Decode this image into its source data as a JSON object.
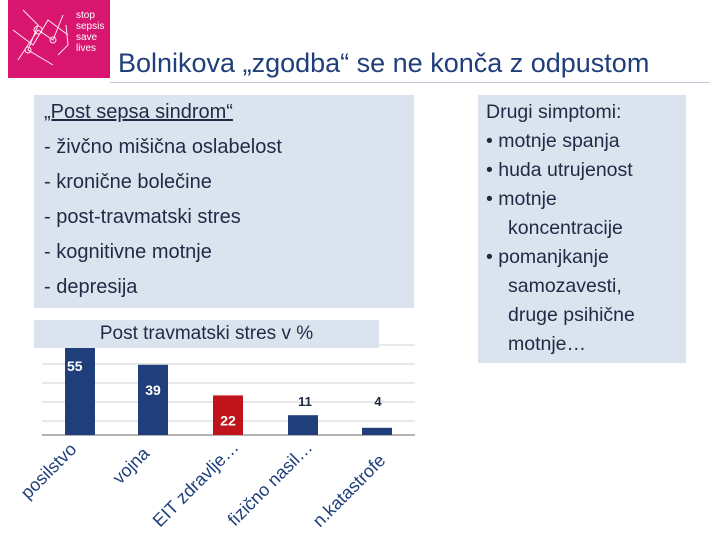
{
  "logo": {
    "lines": [
      "stop",
      "sepsis",
      "save",
      "lives"
    ]
  },
  "title": "Bolnikova „zgodba“ se ne konča z odpustom",
  "left_box": {
    "heading": "„Post sepsa sindrom“",
    "items": [
      "- živčno mišična oslabelost",
      "- kronične bolečine",
      "- post-travmatski stres",
      "- kognitivne motnje",
      "- depresija"
    ]
  },
  "right_box": {
    "lines": [
      "Drugi simptomi:",
      "• motnje spanja",
      "• huda utrujenost",
      "• motnje",
      "koncentracije",
      "• pomanjkanje",
      "samozavesti,",
      "druge psihične",
      "motnje…"
    ]
  },
  "colors": {
    "accent": "#1f3e7a",
    "bar": "#1f3e7a",
    "highlight": "#c0141c",
    "box": "#dbe3ef",
    "logo": "#d9166f"
  },
  "chart_data": {
    "type": "bar",
    "title": "Post travmatski stres v %",
    "categories": [
      "posilstvo",
      "vojna",
      "EIT zdravlje…",
      "fizično nasil…",
      "n.katastrofe"
    ],
    "values": [
      55,
      39,
      22,
      11,
      4
    ],
    "highlight_index": 2,
    "ylim": [
      0,
      60
    ],
    "grid": true
  }
}
